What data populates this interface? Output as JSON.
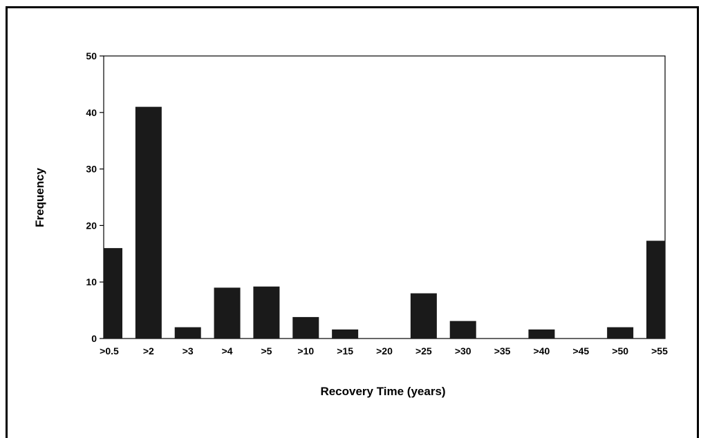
{
  "chart_data": {
    "type": "bar",
    "title": "",
    "xlabel": "Recovery Time (years)",
    "ylabel": "Frequency",
    "categories": [
      ">0.5",
      ">2",
      ">3",
      ">4",
      ">5",
      ">10",
      ">15",
      ">20",
      ">25",
      ">30",
      ">35",
      ">40",
      ">45",
      ">50",
      ">55"
    ],
    "values": [
      16,
      41,
      2,
      9,
      9.2,
      3.8,
      1.6,
      0,
      8,
      3.1,
      0,
      1.6,
      0,
      2,
      17.3
    ],
    "ylim": [
      0,
      50
    ],
    "yticks": [
      0,
      10,
      20,
      30,
      40,
      50
    ],
    "grid": false,
    "bar_color": "#1a1a1a"
  }
}
